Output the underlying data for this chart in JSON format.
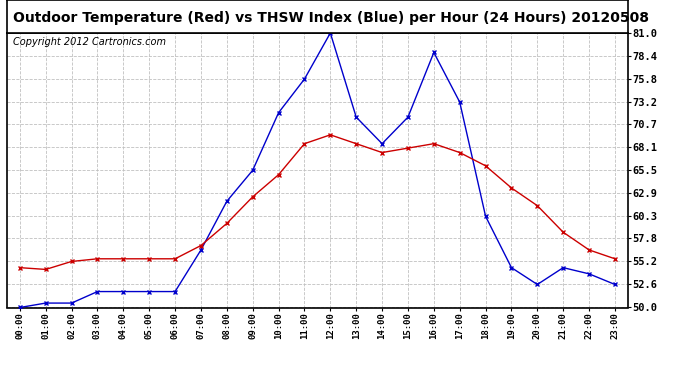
{
  "title": "Outdoor Temperature (Red) vs THSW Index (Blue) per Hour (24 Hours) 20120508",
  "copyright": "Copyright 2012 Cartronics.com",
  "hours": [
    "00:00",
    "01:00",
    "02:00",
    "03:00",
    "04:00",
    "05:00",
    "06:00",
    "07:00",
    "08:00",
    "09:00",
    "10:00",
    "11:00",
    "12:00",
    "13:00",
    "14:00",
    "15:00",
    "16:00",
    "17:00",
    "18:00",
    "19:00",
    "20:00",
    "21:00",
    "22:00",
    "23:00"
  ],
  "red_temp": [
    54.5,
    54.3,
    55.2,
    55.5,
    55.5,
    55.5,
    55.5,
    57.0,
    59.5,
    62.5,
    65.0,
    68.5,
    69.5,
    68.5,
    67.5,
    68.0,
    68.5,
    67.5,
    66.0,
    63.5,
    61.5,
    58.5,
    56.5,
    55.5
  ],
  "blue_thsw": [
    50.0,
    50.5,
    50.5,
    51.8,
    51.8,
    51.8,
    51.8,
    56.5,
    62.0,
    65.5,
    72.0,
    75.8,
    81.0,
    71.5,
    68.5,
    71.5,
    78.8,
    73.2,
    60.3,
    54.5,
    52.6,
    54.5,
    53.8,
    52.6
  ],
  "ylim": [
    50.0,
    81.0
  ],
  "yticks": [
    50.0,
    52.6,
    55.2,
    57.8,
    60.3,
    62.9,
    65.5,
    68.1,
    70.7,
    73.2,
    75.8,
    78.4,
    81.0
  ],
  "bg_color": "#ffffff",
  "plot_bg_color": "#ffffff",
  "grid_color": "#c0c0c0",
  "red_color": "#cc0000",
  "blue_color": "#0000cc",
  "title_fontsize": 10,
  "copyright_fontsize": 7
}
